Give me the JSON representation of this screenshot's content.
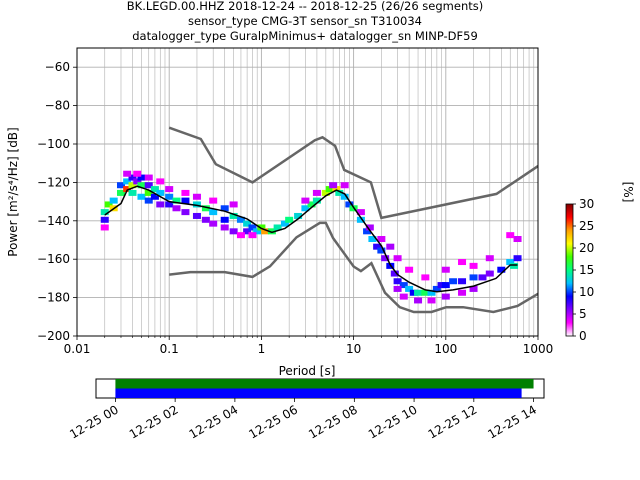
{
  "chart_data": {
    "type": "heatmap",
    "title_lines": [
      "BK.LEGD.00.HHZ   2018-12-24 -- 2018-12-25  (26/26 segments)",
      "sensor_type CMG-3T sensor_sn T310034",
      "datalogger_type GuralpMinimus+ datalogger_sn MINP-DF59"
    ],
    "xlabel": "Period [s]",
    "ylabel": "Power [m²/s⁴/Hz] [dB]",
    "x_scale": "log",
    "xlim": [
      0.01,
      1000
    ],
    "ylim": [
      -200,
      -50
    ],
    "x_ticks": [
      {
        "v": 0.01,
        "label": "0.01"
      },
      {
        "v": 0.1,
        "label": "0.1"
      },
      {
        "v": 1,
        "label": "1"
      },
      {
        "v": 10,
        "label": "10"
      },
      {
        "v": 100,
        "label": "100"
      },
      {
        "v": 1000,
        "label": "1000"
      }
    ],
    "y_ticks": [
      {
        "v": -60,
        "label": "−60"
      },
      {
        "v": -80,
        "label": "−80"
      },
      {
        "v": -100,
        "label": "−100"
      },
      {
        "v": -120,
        "label": "−120"
      },
      {
        "v": -140,
        "label": "−140"
      },
      {
        "v": -160,
        "label": "−160"
      },
      {
        "v": -180,
        "label": "−180"
      },
      {
        "v": -200,
        "label": "−200"
      }
    ],
    "grid": true,
    "colorbar": {
      "label": "[%]",
      "min": 0,
      "max": 30,
      "ticks": [
        {
          "v": 0,
          "label": "0"
        },
        {
          "v": 5,
          "label": "5"
        },
        {
          "v": 10,
          "label": "10"
        },
        {
          "v": 15,
          "label": "15"
        },
        {
          "v": 20,
          "label": "20"
        },
        {
          "v": 25,
          "label": "25"
        },
        {
          "v": 30,
          "label": "30"
        }
      ],
      "colormap": [
        "#ffffff",
        "#ff00ff",
        "#8000ff",
        "#0000ff",
        "#00c0ff",
        "#00ff80",
        "#40ff00",
        "#ffff00",
        "#ffa000",
        "#ff0000",
        "#800000"
      ]
    },
    "nhnm": {
      "name": "NHNM",
      "color": "#666666",
      "points": [
        [
          0.1,
          -91.5
        ],
        [
          0.22,
          -97.4
        ],
        [
          0.32,
          -110.5
        ],
        [
          0.8,
          -120
        ],
        [
          3.8,
          -98
        ],
        [
          4.6,
          -96.5
        ],
        [
          6.3,
          -101
        ],
        [
          7.9,
          -113.5
        ],
        [
          15.4,
          -120
        ],
        [
          20,
          -138.5
        ],
        [
          354.8,
          -126
        ],
        [
          1000,
          -111.5
        ]
      ]
    },
    "nlnm": {
      "name": "NLNM",
      "color": "#666666",
      "points": [
        [
          0.1,
          -168
        ],
        [
          0.17,
          -166.7
        ],
        [
          0.4,
          -166.7
        ],
        [
          0.8,
          -169.2
        ],
        [
          1.24,
          -163.7
        ],
        [
          2.4,
          -148.6
        ],
        [
          4.3,
          -141.1
        ],
        [
          5,
          -141.1
        ],
        [
          6,
          -149
        ],
        [
          10,
          -163.8
        ],
        [
          12,
          -166.2
        ],
        [
          15.6,
          -162.1
        ],
        [
          21.9,
          -177.5
        ],
        [
          31.6,
          -185
        ],
        [
          45,
          -187.5
        ],
        [
          70,
          -187.5
        ],
        [
          101,
          -185
        ],
        [
          154,
          -185
        ],
        [
          328,
          -187.5
        ],
        [
          600,
          -184.4
        ],
        [
          1000,
          -178
        ]
      ]
    },
    "mode_line": {
      "name": "mode",
      "color": "#000000",
      "points": [
        [
          0.02,
          -137
        ],
        [
          0.03,
          -131
        ],
        [
          0.035,
          -124
        ],
        [
          0.045,
          -122
        ],
        [
          0.06,
          -124
        ],
        [
          0.1,
          -130
        ],
        [
          0.2,
          -132
        ],
        [
          0.4,
          -135
        ],
        [
          0.7,
          -139
        ],
        [
          1,
          -144
        ],
        [
          1.3,
          -146
        ],
        [
          1.8,
          -144
        ],
        [
          2.5,
          -139
        ],
        [
          3.5,
          -133
        ],
        [
          5,
          -127
        ],
        [
          6.5,
          -124
        ],
        [
          8,
          -126
        ],
        [
          10,
          -133
        ],
        [
          15,
          -145
        ],
        [
          20,
          -153
        ],
        [
          25,
          -163
        ],
        [
          30,
          -168
        ],
        [
          40,
          -172
        ],
        [
          60,
          -176
        ],
        [
          80,
          -177
        ],
        [
          120,
          -176
        ],
        [
          200,
          -174
        ],
        [
          350,
          -170
        ],
        [
          500,
          -163
        ],
        [
          600,
          -163
        ]
      ]
    },
    "density_cells": [
      [
        0.02,
        -140,
        8
      ],
      [
        0.02,
        -136,
        14
      ],
      [
        0.022,
        -132,
        18
      ],
      [
        0.025,
        -134,
        22
      ],
      [
        0.025,
        -130,
        12
      ],
      [
        0.03,
        -126,
        16
      ],
      [
        0.03,
        -122,
        10
      ],
      [
        0.035,
        -120,
        12
      ],
      [
        0.035,
        -124,
        26
      ],
      [
        0.04,
        -118,
        8
      ],
      [
        0.04,
        -122,
        20
      ],
      [
        0.04,
        -126,
        14
      ],
      [
        0.045,
        -120,
        6
      ],
      [
        0.05,
        -118,
        9
      ],
      [
        0.05,
        -122,
        16
      ],
      [
        0.05,
        -128,
        12
      ],
      [
        0.06,
        -122,
        7
      ],
      [
        0.06,
        -126,
        18
      ],
      [
        0.06,
        -130,
        10
      ],
      [
        0.07,
        -124,
        14
      ],
      [
        0.07,
        -128,
        9
      ],
      [
        0.08,
        -126,
        12
      ],
      [
        0.08,
        -132,
        6
      ],
      [
        0.1,
        -128,
        11
      ],
      [
        0.1,
        -132,
        8
      ],
      [
        0.12,
        -130,
        15
      ],
      [
        0.12,
        -134,
        5
      ],
      [
        0.15,
        -130,
        9
      ],
      [
        0.15,
        -136,
        6
      ],
      [
        0.2,
        -132,
        13
      ],
      [
        0.2,
        -138,
        7
      ],
      [
        0.25,
        -134,
        16
      ],
      [
        0.25,
        -140,
        6
      ],
      [
        0.3,
        -136,
        12
      ],
      [
        0.3,
        -142,
        5
      ],
      [
        0.4,
        -134,
        10
      ],
      [
        0.4,
        -140,
        9
      ],
      [
        0.4,
        -144,
        5
      ],
      [
        0.5,
        -138,
        14
      ],
      [
        0.5,
        -146,
        6
      ],
      [
        0.6,
        -140,
        11
      ],
      [
        0.7,
        -142,
        13
      ],
      [
        0.7,
        -146,
        7
      ],
      [
        0.8,
        -144,
        10
      ],
      [
        0.9,
        -146,
        12
      ],
      [
        1,
        -144,
        18
      ],
      [
        1.1,
        -146,
        24
      ],
      [
        1.3,
        -146,
        16
      ],
      [
        1.5,
        -144,
        14
      ],
      [
        1.8,
        -142,
        12
      ],
      [
        2,
        -140,
        15
      ],
      [
        2.5,
        -138,
        13
      ],
      [
        3,
        -134,
        12
      ],
      [
        3.5,
        -132,
        16
      ],
      [
        4,
        -130,
        14
      ],
      [
        5,
        -126,
        20
      ],
      [
        5.5,
        -124,
        18
      ],
      [
        6.5,
        -124,
        22
      ],
      [
        7,
        -126,
        14
      ],
      [
        8,
        -128,
        12
      ],
      [
        9,
        -132,
        10
      ],
      [
        10,
        -134,
        16
      ],
      [
        12,
        -140,
        12
      ],
      [
        14,
        -146,
        10
      ],
      [
        16,
        -150,
        12
      ],
      [
        18,
        -154,
        8
      ],
      [
        20,
        -156,
        10
      ],
      [
        22,
        -160,
        6
      ],
      [
        25,
        -164,
        9
      ],
      [
        28,
        -168,
        7
      ],
      [
        30,
        -172,
        8
      ],
      [
        35,
        -174,
        10
      ],
      [
        40,
        -176,
        12
      ],
      [
        45,
        -178,
        9
      ],
      [
        50,
        -178,
        14
      ],
      [
        60,
        -178,
        16
      ],
      [
        70,
        -178,
        12
      ],
      [
        80,
        -176,
        10
      ],
      [
        90,
        -174,
        8
      ],
      [
        100,
        -174,
        9
      ],
      [
        120,
        -172,
        10
      ],
      [
        150,
        -172,
        8
      ],
      [
        200,
        -170,
        10
      ],
      [
        250,
        -170,
        7
      ],
      [
        300,
        -168,
        6
      ],
      [
        400,
        -166,
        9
      ],
      [
        500,
        -162,
        12
      ],
      [
        550,
        -164,
        14
      ],
      [
        600,
        -160,
        8
      ],
      [
        600,
        -150,
        4
      ],
      [
        500,
        -148,
        3
      ],
      [
        300,
        -160,
        4
      ],
      [
        200,
        -164,
        3
      ],
      [
        150,
        -162,
        3
      ],
      [
        100,
        -166,
        4
      ],
      [
        60,
        -170,
        3
      ],
      [
        40,
        -166,
        3
      ],
      [
        30,
        -160,
        4
      ],
      [
        25,
        -154,
        5
      ],
      [
        20,
        -150,
        4
      ],
      [
        15,
        -144,
        5
      ],
      [
        12,
        -136,
        4
      ],
      [
        50,
        -182,
        5
      ],
      [
        70,
        -182,
        4
      ],
      [
        100,
        -180,
        5
      ],
      [
        150,
        -178,
        4
      ],
      [
        200,
        -176,
        5
      ],
      [
        35,
        -180,
        4
      ],
      [
        30,
        -176,
        5
      ],
      [
        0.035,
        -116,
        4
      ],
      [
        0.045,
        -116,
        3
      ],
      [
        0.06,
        -118,
        4
      ],
      [
        0.08,
        -120,
        3
      ],
      [
        0.1,
        -124,
        4
      ],
      [
        0.15,
        -126,
        3
      ],
      [
        0.2,
        -128,
        4
      ],
      [
        0.3,
        -130,
        3
      ],
      [
        0.5,
        -132,
        4
      ],
      [
        0.6,
        -148,
        3
      ],
      [
        0.8,
        -148,
        3
      ],
      [
        0.02,
        -144,
        3
      ],
      [
        3,
        -130,
        4
      ],
      [
        4,
        -126,
        4
      ],
      [
        6,
        -122,
        5
      ],
      [
        8,
        -122,
        4
      ]
    ]
  },
  "timeline": {
    "tick_labels": [
      "12-25 00",
      "12-25 02",
      "12-25 04",
      "12-25 06",
      "12-25 08",
      "12-25 10",
      "12-25 12",
      "12-25 14"
    ],
    "tick_hours": [
      0,
      2,
      4,
      6,
      8,
      10,
      12,
      14
    ],
    "range_hours": [
      -0.65,
      14.35
    ],
    "segments": [
      {
        "name": "data-available",
        "color": "#008000",
        "start_hours": 0,
        "end_hours": 14
      },
      {
        "name": "data-used",
        "color": "#0000ff",
        "start_hours": 0,
        "end_hours": 13.6
      }
    ]
  }
}
